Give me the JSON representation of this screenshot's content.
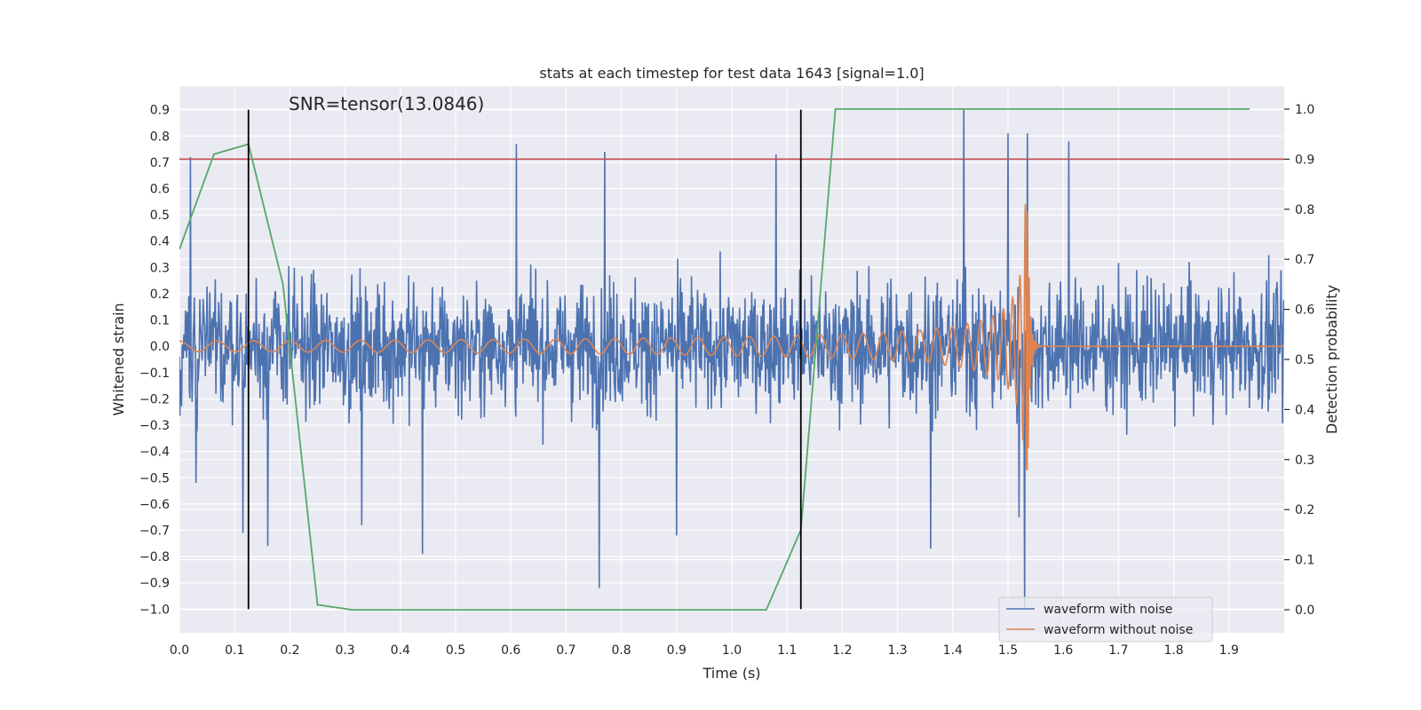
{
  "chart_data": {
    "type": "line",
    "title": "stats at each timestep for test data 1643 [signal=1.0]",
    "annotation": "SNR=tensor(13.0846)",
    "xlabel": "Time (s)",
    "ylabel": "Whitened strain",
    "y2label": "Detection probability",
    "xlim": [
      0.0,
      2.0
    ],
    "ylim": [
      -1.09,
      0.99
    ],
    "y2lim": [
      -0.046,
      1.046
    ],
    "grid": true,
    "legend_position": "lower right",
    "x_ticks": [
      "0.0",
      "0.1",
      "0.2",
      "0.3",
      "0.4",
      "0.5",
      "0.6",
      "0.7",
      "0.8",
      "0.9",
      "1.0",
      "1.1",
      "1.2",
      "1.3",
      "1.4",
      "1.5",
      "1.6",
      "1.7",
      "1.8",
      "1.9"
    ],
    "y_ticks": [
      "0.9",
      "0.8",
      "0.7",
      "0.6",
      "0.5",
      "0.4",
      "0.3",
      "0.2",
      "0.1",
      "0.0",
      "−0.1",
      "−0.2",
      "−0.3",
      "−0.4",
      "−0.5",
      "−0.6",
      "−0.7",
      "−0.8",
      "−0.9",
      "−1.0"
    ],
    "y2_ticks": [
      "1.0",
      "0.9",
      "0.8",
      "0.7",
      "0.6",
      "0.5",
      "0.4",
      "0.3",
      "0.2",
      "0.1",
      "0.0"
    ],
    "threshold": {
      "value": 0.9,
      "axis": "y2",
      "color": "#c44e52"
    },
    "vertical_markers": {
      "x": [
        0.125,
        1.125
      ],
      "y_range": [
        -1.0,
        0.9
      ],
      "color": "#000000"
    },
    "series": [
      {
        "name": "waveform with noise",
        "axis": "y",
        "color": "#4c72b0",
        "generator": "noise",
        "n": 2000,
        "x_range": [
          0.0,
          1.999
        ],
        "spread": 0.24,
        "spikes": [
          [
            0.02,
            0.72
          ],
          [
            0.03,
            -0.52
          ],
          [
            0.115,
            -0.71
          ],
          [
            0.16,
            -0.76
          ],
          [
            0.33,
            -0.68
          ],
          [
            0.44,
            -0.79
          ],
          [
            0.61,
            0.77
          ],
          [
            0.76,
            -0.92
          ],
          [
            0.77,
            0.74
          ],
          [
            0.9,
            -0.72
          ],
          [
            1.08,
            0.73
          ],
          [
            1.36,
            -0.77
          ],
          [
            1.42,
            0.9
          ],
          [
            1.5,
            0.81
          ],
          [
            1.52,
            -0.65
          ],
          [
            1.535,
            0.81
          ],
          [
            1.53,
            -1.0
          ],
          [
            1.61,
            0.78
          ]
        ]
      },
      {
        "name": "waveform without noise",
        "axis": "y",
        "color": "#dd8452",
        "generator": "chirp",
        "x_range": [
          0.0,
          1.999
        ],
        "merger_time": 1.535
      },
      {
        "name": "Detection probability",
        "axis": "y2",
        "color": "#55a868",
        "x": [
          0.0,
          0.0625,
          0.125,
          0.1875,
          0.25,
          0.3125,
          1.0625,
          1.125,
          1.1875,
          1.25,
          1.9375
        ],
        "values": [
          0.72,
          0.91,
          0.93,
          0.65,
          0.01,
          0.0,
          0.0,
          0.16,
          1.0,
          1.0,
          1.0
        ]
      }
    ]
  }
}
